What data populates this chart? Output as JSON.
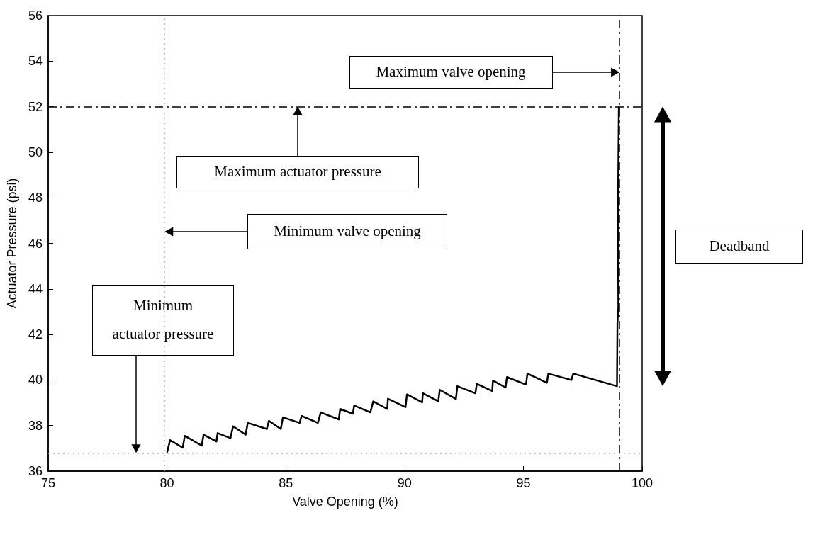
{
  "chart_data": {
    "type": "line",
    "xlabel": "Valve Opening (%)",
    "ylabel": "Actuator Pressure (psi)",
    "xlim": [
      75,
      100
    ],
    "xticks": [
      75,
      80,
      85,
      90,
      95,
      100
    ],
    "ylim": [
      36,
      56
    ],
    "yticks": [
      36,
      38,
      40,
      42,
      44,
      46,
      48,
      50,
      52,
      54,
      56
    ],
    "grid": false,
    "marker": "none",
    "line_style": "solid",
    "series": [
      {
        "color": "#000000",
        "x": [
          80.01,
          80.13,
          80.66,
          80.75,
          81.46,
          81.54,
          82.08,
          82.13,
          82.67,
          82.78,
          83.31,
          83.4,
          84.2,
          84.29,
          84.79,
          84.88,
          85.58,
          85.67,
          86.35,
          86.47,
          87.23,
          87.29,
          87.82,
          87.88,
          88.56,
          88.68,
          89.27,
          89.3,
          90.04,
          90.1,
          90.74,
          90.77,
          91.42,
          91.48,
          92.16,
          92.22,
          92.98,
          93.04,
          93.69,
          93.72,
          94.25,
          94.31,
          95.11,
          95.17,
          95.99,
          96.05,
          97.02,
          97.1,
          98.94,
          98.96,
          99.0,
          98.98,
          99.02
        ],
        "values": [
          36.85,
          37.36,
          37.03,
          37.55,
          37.12,
          37.6,
          37.3,
          37.67,
          37.45,
          37.97,
          37.6,
          38.12,
          37.85,
          38.21,
          37.85,
          38.36,
          38.12,
          38.42,
          38.12,
          38.58,
          38.27,
          38.73,
          38.52,
          38.88,
          38.58,
          39.06,
          38.73,
          39.18,
          38.81,
          39.37,
          39.02,
          39.42,
          39.07,
          39.57,
          39.17,
          39.73,
          39.42,
          39.83,
          39.52,
          39.98,
          39.67,
          40.13,
          39.8,
          40.28,
          39.88,
          40.28,
          40.0,
          40.28,
          39.73,
          42.5,
          43.2,
          47.0,
          52.0
        ]
      }
    ],
    "ref_lines": [
      {
        "axis": "y",
        "value": 52,
        "color": "#000000",
        "line_style": "dashed"
      },
      {
        "axis": "x",
        "value": 99.05,
        "color": "#000000",
        "line_style": "dashed"
      },
      {
        "axis": "x",
        "value": 79.9,
        "color": "#b0b0b0",
        "line_style": "dotted"
      },
      {
        "axis": "y",
        "value": 36.8,
        "color": "#b0b0b0",
        "line_style": "dotted"
      }
    ],
    "annotations": [
      "Maximum valve opening",
      "Maximum actuator pressure",
      "Minimum valve opening",
      "Minimum\nactuator pressure",
      "Deadband"
    ]
  }
}
